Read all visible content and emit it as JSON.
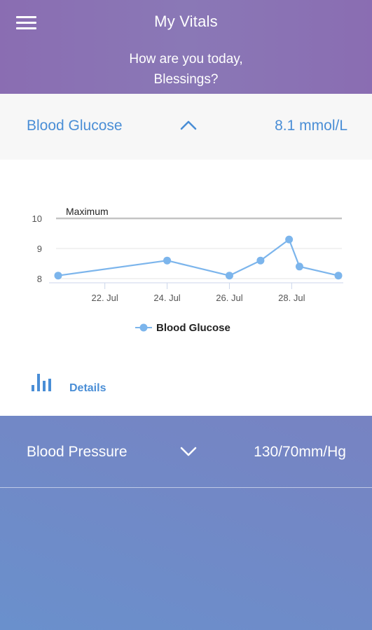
{
  "header": {
    "title": "My Vitals",
    "greeting_line1": "How are you today,",
    "greeting_line2": "Blessings?"
  },
  "glucose": {
    "label": "Blood Glucose",
    "value": "8.1 mmol/L",
    "expanded": true
  },
  "chart_data": {
    "type": "line",
    "title": "",
    "xlabel": "",
    "ylabel": "",
    "ylim": [
      8,
      10
    ],
    "y_ticks": [
      "8",
      "9",
      "10"
    ],
    "x_ticks": [
      "22. Jul",
      "24. Jul",
      "26. Jul",
      "28. Jul"
    ],
    "series": [
      {
        "name": "Blood Glucose",
        "color": "#7cb5ec",
        "points": [
          {
            "x": "2020-07-20T12:00",
            "y": 8.1
          },
          {
            "x": "2020-07-24",
            "y": 8.6
          },
          {
            "x": "2020-07-26",
            "y": 8.1
          },
          {
            "x": "2020-07-27",
            "y": 8.6
          },
          {
            "x": "2020-07-27T22:00",
            "y": 9.3
          },
          {
            "x": "2020-07-28T06:00",
            "y": 8.4
          },
          {
            "x": "2020-07-29T12:00",
            "y": 8.1
          }
        ]
      }
    ],
    "plot_lines": [
      {
        "label": "Maximum",
        "value": 10
      }
    ],
    "grid": true,
    "legend": "bottom-center"
  },
  "details": {
    "label": "Details",
    "icon": "bar-chart-icon"
  },
  "blood_pressure": {
    "label": "Blood Pressure",
    "value": "130/70mm/Hg",
    "expanded": false
  },
  "colors": {
    "accent": "#4a8ed6",
    "header": "#8a6db2",
    "series": "#7cb5ec"
  }
}
